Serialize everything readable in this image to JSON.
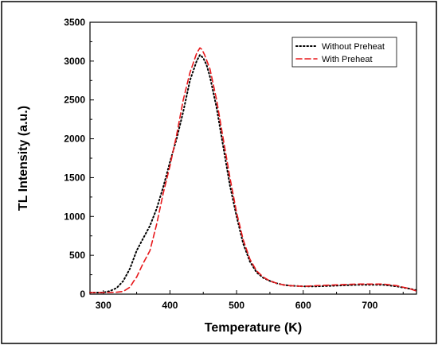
{
  "chart_data": {
    "type": "line",
    "title": "",
    "xlabel": "Temperature (K)",
    "ylabel": "TL Intensity (a.u.)",
    "xlim": [
      280,
      770
    ],
    "ylim": [
      0,
      3500
    ],
    "xticks": [
      300,
      400,
      500,
      600,
      700
    ],
    "yticks": [
      0,
      500,
      1000,
      1500,
      2000,
      2500,
      3000,
      3500
    ],
    "grid": false,
    "legend_position": "top-right",
    "series": [
      {
        "name": "Without Preheat",
        "color": "#000000",
        "style": "dotted",
        "x": [
          280,
          300,
          310,
          320,
          330,
          340,
          350,
          360,
          370,
          380,
          390,
          400,
          410,
          420,
          430,
          440,
          445,
          450,
          455,
          460,
          470,
          480,
          490,
          500,
          510,
          520,
          530,
          540,
          550,
          560,
          570,
          580,
          600,
          620,
          650,
          680,
          700,
          720,
          740,
          760,
          770
        ],
        "y": [
          20,
          20,
          40,
          80,
          170,
          330,
          560,
          720,
          880,
          1100,
          1380,
          1700,
          2000,
          2350,
          2750,
          3000,
          3080,
          3040,
          2950,
          2800,
          2400,
          1900,
          1400,
          1000,
          650,
          420,
          280,
          210,
          170,
          140,
          120,
          110,
          100,
          100,
          110,
          120,
          120,
          120,
          100,
          70,
          50
        ]
      },
      {
        "name": "With Preheat",
        "color": "#e8191c",
        "style": "dashed",
        "x": [
          280,
          300,
          320,
          330,
          340,
          345,
          350,
          360,
          370,
          380,
          390,
          400,
          410,
          420,
          430,
          440,
          445,
          448,
          452,
          460,
          470,
          480,
          490,
          500,
          510,
          520,
          530,
          540,
          550,
          560,
          570,
          580,
          600,
          620,
          650,
          680,
          700,
          720,
          740,
          760,
          770
        ],
        "y": [
          20,
          20,
          25,
          35,
          90,
          160,
          220,
          400,
          560,
          900,
          1300,
          1650,
          2050,
          2500,
          2850,
          3100,
          3170,
          3150,
          3080,
          2900,
          2500,
          2000,
          1500,
          1050,
          700,
          450,
          300,
          220,
          170,
          140,
          120,
          110,
          100,
          110,
          120,
          130,
          130,
          130,
          110,
          70,
          40
        ]
      }
    ]
  }
}
